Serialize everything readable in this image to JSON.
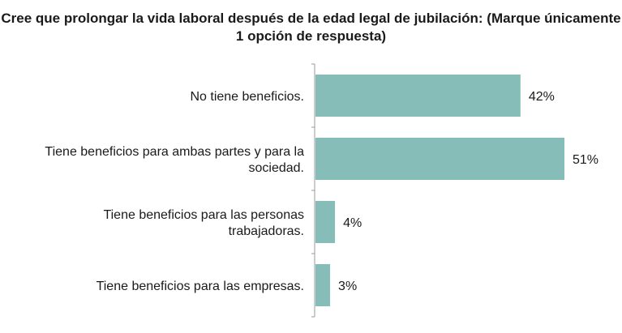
{
  "chart_data": {
    "type": "bar",
    "orientation": "horizontal",
    "title": "Cree que prolongar la vida laboral después de la edad legal de jubilación: (Marque únicamente 1 opción de respuesta)",
    "categories": [
      [
        "No tiene beneficios."
      ],
      [
        "Tiene beneficios para ambas partes y para la",
        "sociedad."
      ],
      [
        "Tiene beneficios para las personas",
        "trabajadoras."
      ],
      [
        "Tiene beneficios para las empresas."
      ]
    ],
    "values": [
      42,
      51,
      4,
      3
    ],
    "data_labels": [
      "42%",
      "51%",
      "4%",
      "3%"
    ],
    "xlim": [
      0,
      51
    ],
    "grid": false,
    "legend": "none",
    "bar_color": "#86BDB9",
    "axis_color": "#999999"
  }
}
